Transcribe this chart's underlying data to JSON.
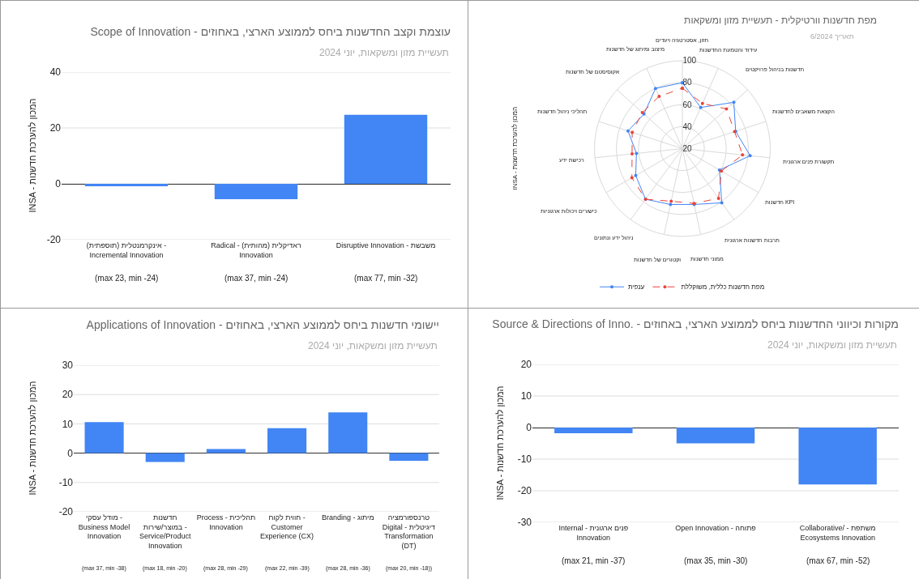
{
  "chart_data": [
    {
      "type": "bar",
      "title": "Scope of Innovation - עוצמת וקצב החדשנות ביחס לממוצע הארצי, באחוזים",
      "subtitle": "תעשיית מזון ומשקאות, יוני 2024",
      "ylabel": "INSA - המכון להערכת חדשנות",
      "categories": [
        "אינקרמנטלית (תוספתית) -\nIncremental Innovation\n\n(max 23, min -24)",
        "Radical - ראדיקלית (מהותית)\nInnovation\n\n(max 37, min -24)",
        "Disruptive Innovation - משבשת\n\n(max 77, min -32)"
      ],
      "values": [
        -0.9,
        -5.5,
        24.7
      ],
      "color": "#4285f4",
      "ylim": [
        -20,
        40
      ],
      "yticks": [
        -20,
        0,
        20,
        40
      ],
      "grid": "y"
    },
    {
      "type": "radar",
      "title": "מפת חדשנות וורטיקלית - תעשיית מזון ומשקאות",
      "subtitle": "תאריך 6/2024",
      "ylabel": "INSA - המכון להערכת חדשנות",
      "categories": [
        "חזון, אסטרטגיה ויעדים",
        "עידוד והטמעת החדשנות",
        "חדשנות בניהול פרויקטים",
        "הקצאת משאבים לחדשנות",
        "תקשורת פנים ארגונית",
        "חדשנות KPI",
        "תרבות חדשנות ארגונית",
        "ממוני חדשנות",
        "וקטורים של חדשנות",
        "ניהול ידע ונתונים",
        "כישורים ויכולות ארגוניות",
        "רכישת ידע",
        "תהליכי ניהול חדשנות",
        "אקוסיסטם של חדשנות",
        "מיצוב ומיתוג של חדשנות"
      ],
      "series": [
        {
          "name": "ענפית",
          "color": "#4285f4",
          "line_style": "solid",
          "values": [
            80,
            61,
            83,
            71,
            82,
            59,
            81,
            72,
            72,
            77,
            69,
            62,
            72,
            67,
            80
          ]
        },
        {
          "name": "מפת חדשנות כללית, משוקללת",
          "color": "#ea4335",
          "line_style": "dashed",
          "values": [
            75,
            65,
            74,
            70,
            75,
            61,
            76,
            71,
            69,
            77,
            73,
            66,
            68,
            69,
            72
          ]
        }
      ],
      "ylim": [
        20,
        100
      ],
      "yticks": [
        20,
        40,
        60,
        80,
        100
      ],
      "grid": true,
      "legend": "bottom",
      "marker": "circle"
    },
    {
      "type": "bar",
      "title": "Applications of Innovation - יישומי חדשנות ביחס לממוצע הארצי, באחוזים",
      "subtitle": "תעשיית מזון ומשקאות, יוני 2024",
      "ylabel": "INSA - המכון להערכת חדשנות",
      "categories": [
        "מודל עסקי -\nBusiness Model\nInnovation\n\n(max 37, min -38)",
        "חדשנות\nבמוצר/שירות -\nService/Product\nInnovation\n\n(max 18, min -20)",
        "Process - תהליכית\nInnovation\n\n(max 28, min -29)",
        "חווית לקוח -\nCustomer\nExperience (CX)\n\n(max 22, min -39)",
        "Branding - מיתוג\n\n(max 28, min -36)",
        "טרנספורמציה\nDigital - דיגיטלית\nTransformation\n(DT)\n\n(max 20, min -18))"
      ],
      "values": [
        10.6,
        -3.0,
        1.4,
        8.5,
        13.9,
        -2.6
      ],
      "color": "#4285f4",
      "ylim": [
        -20,
        30
      ],
      "yticks": [
        -20,
        -10,
        0,
        10,
        20,
        30
      ],
      "grid": "y"
    },
    {
      "type": "bar",
      "title": "Source & Directions of Inno. - מקורות וכיווני החדשנות ביחס לממוצע הארצי, באחוזים",
      "subtitle": "תעשיית מזון ומשקאות, יוני 2024",
      "ylabel": "INSA - המכון להערכת חדשנות",
      "categories": [
        "Internal - פנים ארגונית\nInnovation\n\n(max 21, min -37)",
        "Open Innovation - פתוחה\n\n(max 35, min -30)",
        "Collaborative/ - משתפת\nEcosystems Innovation\n\n(max 67, min -52)"
      ],
      "values": [
        -1.8,
        -5.0,
        -18.0
      ],
      "color": "#4285f4",
      "ylim": [
        -30,
        20
      ],
      "yticks": [
        -30,
        -20,
        -10,
        0,
        10,
        20
      ],
      "grid": "y"
    }
  ]
}
